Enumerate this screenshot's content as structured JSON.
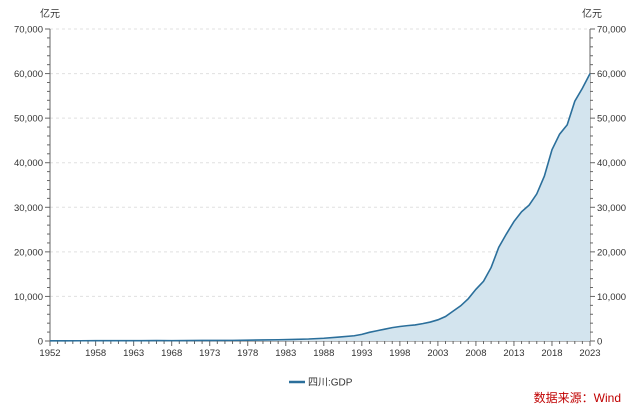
{
  "chart_data": {
    "type": "area",
    "title": "",
    "unit_left": "亿元",
    "unit_right": "亿元",
    "xlabel": "",
    "ylabel": "",
    "ylim": [
      0,
      70000
    ],
    "xlim": [
      1952,
      2023
    ],
    "y_ticks": [
      "0",
      "10,000",
      "20,000",
      "30,000",
      "40,000",
      "50,000",
      "60,000",
      "70,000"
    ],
    "y_tick_values": [
      0,
      10000,
      20000,
      30000,
      40000,
      50000,
      60000,
      70000
    ],
    "x_ticks": [
      "1952",
      "1958",
      "1963",
      "1968",
      "1973",
      "1978",
      "1983",
      "1988",
      "1993",
      "1998",
      "2003",
      "2008",
      "2013",
      "2018",
      "2023"
    ],
    "x_tick_values": [
      1952,
      1958,
      1963,
      1968,
      1973,
      1978,
      1983,
      1988,
      1993,
      1998,
      2003,
      2008,
      2013,
      2018,
      2023
    ],
    "grid": true,
    "legend": "bottom-center",
    "colors": {
      "line": "#2b6f9b",
      "fill": "#d3e4ee",
      "grid": "#e0e0e0",
      "axis": "#666666"
    },
    "series": [
      {
        "name": "四川:GDP",
        "x": [
          1952,
          1954,
          1956,
          1958,
          1960,
          1962,
          1964,
          1966,
          1968,
          1970,
          1972,
          1974,
          1976,
          1978,
          1980,
          1982,
          1984,
          1986,
          1988,
          1990,
          1992,
          1993,
          1994,
          1995,
          1996,
          1997,
          1998,
          1999,
          2000,
          2001,
          2002,
          2003,
          2004,
          2005,
          2006,
          2007,
          2008,
          2009,
          2010,
          2011,
          2012,
          2013,
          2014,
          2015,
          2016,
          2017,
          2018,
          2019,
          2020,
          2021,
          2022,
          2023
        ],
        "values": [
          40,
          45,
          55,
          70,
          80,
          75,
          80,
          90,
          85,
          100,
          120,
          130,
          140,
          185,
          230,
          280,
          360,
          450,
          620,
          890,
          1180,
          1480,
          1950,
          2300,
          2650,
          3000,
          3250,
          3450,
          3600,
          3900,
          4250,
          4750,
          5500,
          6700,
          7900,
          9500,
          11600,
          13400,
          16500,
          21000,
          24000,
          26800,
          29000,
          30500,
          33000,
          37000,
          42900,
          46400,
          48500,
          53800,
          56700,
          60000
        ]
      }
    ]
  },
  "footer": {
    "source": "数据来源：Wind"
  }
}
